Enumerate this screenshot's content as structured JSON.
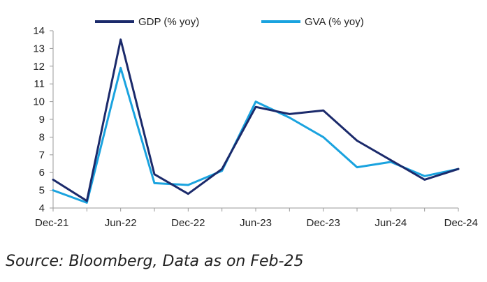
{
  "chart_data": {
    "type": "line",
    "title": "",
    "xlabel": "",
    "ylabel": "",
    "ylim": [
      4,
      14
    ],
    "yticks": [
      4,
      5,
      6,
      7,
      8,
      9,
      10,
      11,
      12,
      13,
      14
    ],
    "x": [
      "Dec-21",
      "Mar-22",
      "Jun-22",
      "Sep-22",
      "Dec-22",
      "Mar-23",
      "Jun-23",
      "Sep-23",
      "Dec-23",
      "Mar-24",
      "Jun-24",
      "Sep-24",
      "Dec-24"
    ],
    "xtick_labels": [
      "Dec-21",
      "Jun-22",
      "Dec-22",
      "Jun-23",
      "Dec-23",
      "Jun-24",
      "Dec-24"
    ],
    "grid": false,
    "legend_position": "top",
    "series": [
      {
        "name": "GDP (% yoy)",
        "color": "#1b2a6b",
        "values": [
          5.6,
          4.4,
          13.5,
          5.9,
          4.8,
          6.2,
          9.7,
          9.3,
          9.5,
          7.8,
          6.7,
          5.6,
          6.2
        ]
      },
      {
        "name": "GVA (% yoy)",
        "color": "#1aa3df",
        "values": [
          5.0,
          4.3,
          11.9,
          5.4,
          5.3,
          6.1,
          10.0,
          9.1,
          8.0,
          6.3,
          6.6,
          5.8,
          6.2
        ]
      }
    ]
  },
  "source_note": "Source: Bloomberg, Data as on Feb-25"
}
